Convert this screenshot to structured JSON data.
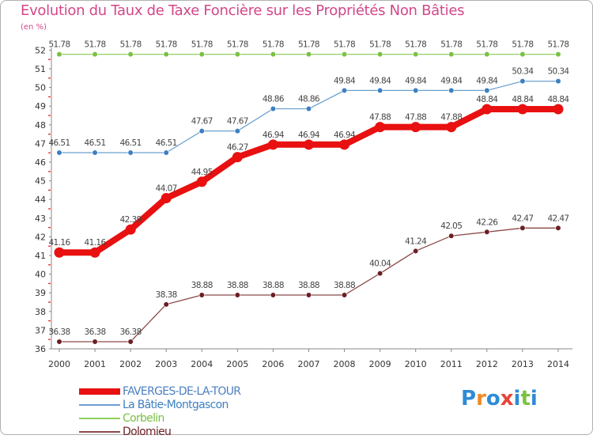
{
  "header": {
    "title": "Evolution du Taux de Taxe Foncière sur les Propriétés Non Bâties",
    "subtitle": "(en %)"
  },
  "logo": {
    "text": "Proxiti",
    "letters": [
      "P",
      "r",
      "o",
      "x",
      "i",
      "t",
      "i"
    ],
    "colors": [
      "#2e8cd6",
      "#f08a24",
      "#2e8cd6",
      "#e8443a",
      "#2e8cd6",
      "#7dc242",
      "#2e8cd6"
    ]
  },
  "chart_data": {
    "type": "line",
    "title": "Evolution du Taux de Taxe Foncière sur les Propriétés Non Bâties",
    "ylabel": "(en %)",
    "xlabel": "",
    "x": [
      2000,
      2001,
      2002,
      2003,
      2004,
      2005,
      2006,
      2007,
      2008,
      2009,
      2010,
      2011,
      2012,
      2013,
      2014
    ],
    "ylim": [
      36,
      52
    ],
    "yticks": [
      36,
      37,
      38,
      39,
      40,
      41,
      42,
      43,
      44,
      45,
      46,
      47,
      48,
      49,
      50,
      51,
      52
    ],
    "grid": false,
    "legend_position": "bottom-left",
    "series": [
      {
        "name": "FAVERGES-DE-LA-TOUR",
        "color": "#e81010",
        "emphasis": true,
        "values": [
          41.16,
          41.16,
          42.39,
          44.07,
          44.95,
          46.27,
          46.94,
          46.94,
          46.94,
          47.88,
          47.88,
          47.88,
          48.84,
          48.84,
          48.84
        ],
        "labels": [
          "41.16",
          "41.16",
          "42.39",
          "44.07",
          "44.95",
          "46.27",
          "46.94",
          "46.94",
          "46.94",
          "47.88",
          "47.88",
          "47.88",
          "48.84",
          "48.84",
          "48.84"
        ]
      },
      {
        "name": "La Bâtie-Montgascon",
        "color": "#6ca0d0",
        "marker": "#3d7fc1",
        "values": [
          46.51,
          46.51,
          46.51,
          46.51,
          47.67,
          47.67,
          48.86,
          48.86,
          49.84,
          49.84,
          49.84,
          49.84,
          49.84,
          50.34,
          50.34
        ],
        "labels": [
          "46.51",
          "46.51",
          "46.51",
          "46.51",
          "47.67",
          "47.67",
          "48.86",
          "48.86",
          "49.84",
          "49.84",
          "49.84",
          "49.84",
          "49.84",
          "50.34",
          "50.34"
        ]
      },
      {
        "name": "Corbelin",
        "color": "#90cf5f",
        "marker": "#7ac043",
        "values": [
          51.78,
          51.78,
          51.78,
          51.78,
          51.78,
          51.78,
          51.78,
          51.78,
          51.78,
          51.78,
          51.78,
          51.78,
          51.78,
          51.78,
          51.78
        ],
        "labels": [
          "51.78",
          "51.78",
          "51.78",
          "51.78",
          "51.78",
          "51.78",
          "51.78",
          "51.78",
          "51.78",
          "51.78",
          "51.78",
          "51.78",
          "51.78",
          "51.78",
          "51.78"
        ]
      },
      {
        "name": "Dolomieu",
        "color": "#8b4a4a",
        "marker": "#6b1f23",
        "values": [
          36.38,
          36.38,
          36.38,
          38.38,
          38.88,
          38.88,
          38.88,
          38.88,
          38.88,
          40.04,
          41.24,
          42.05,
          42.26,
          42.47,
          42.47
        ],
        "labels": [
          "36.38",
          "36.38",
          "36.38",
          "38.38",
          "38.88",
          "38.88",
          "38.88",
          "38.88",
          "38.88",
          "40.04",
          "41.24",
          "42.05",
          "42.26",
          "42.47",
          "42.47"
        ]
      }
    ]
  }
}
